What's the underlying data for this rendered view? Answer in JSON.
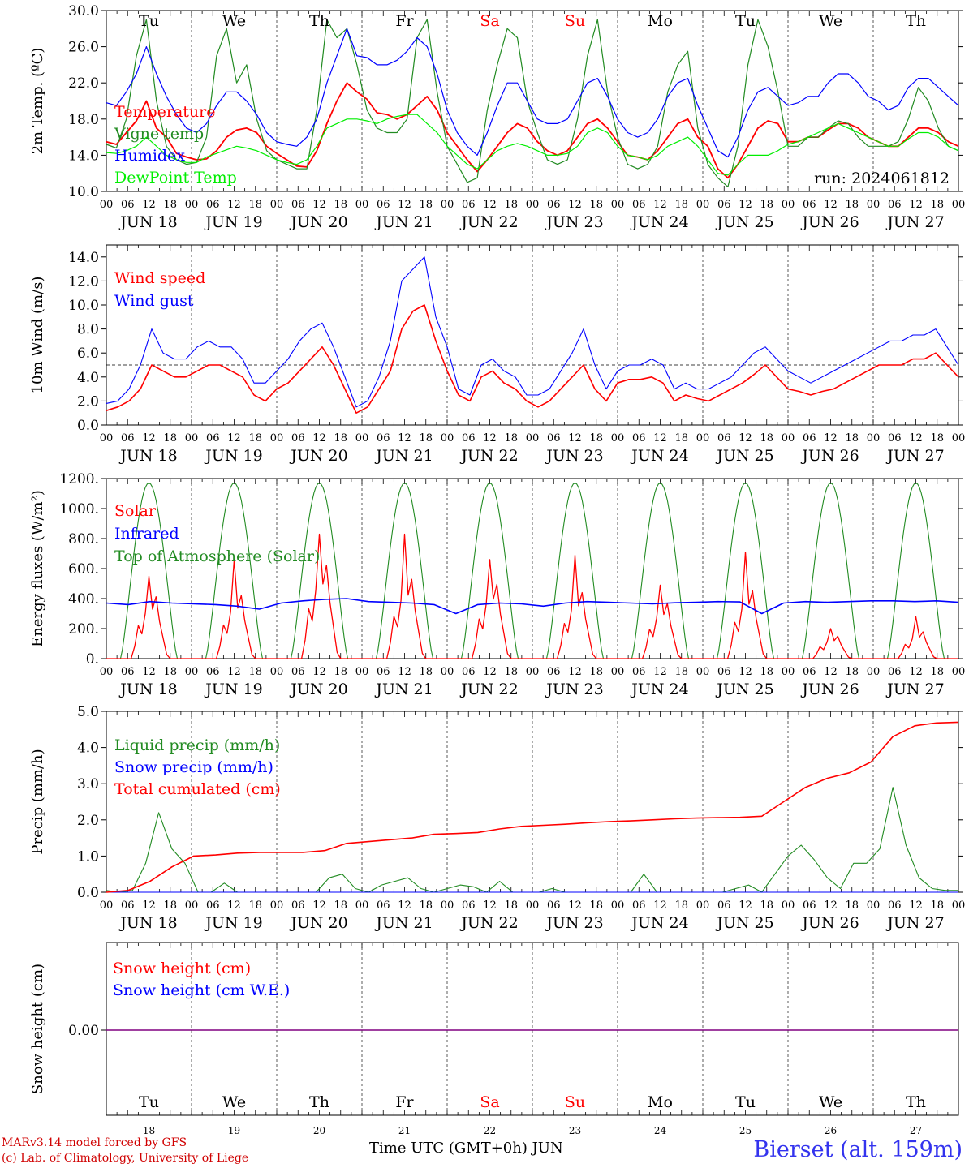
{
  "chart_data": [
    {
      "type": "line",
      "ylabel": "2m Temp. (ºC)",
      "ylim": [
        10,
        30
      ],
      "yticks": [
        "10.0",
        "14.0",
        "18.0",
        "22.0",
        "26.0",
        "30.0"
      ],
      "grid": "dashed vertical lines at day boundaries",
      "legend_position": "top-left",
      "annotation": "run: 2024061812",
      "x_unit": "hours from 2024-06-18 00 UTC, 3-hourly",
      "series": [
        {
          "name": "Temperature",
          "color": "#ff0000",
          "values": [
            15.5,
            15.2,
            16.5,
            17.8,
            20.0,
            17.0,
            16.0,
            14.2,
            13.8,
            13.5,
            13.6,
            14.5,
            16.0,
            16.8,
            17.0,
            16.5,
            15.0,
            14.2,
            13.5,
            12.8,
            12.7,
            14.5,
            17.5,
            20.0,
            22.0,
            21.0,
            20.2,
            18.7,
            18.5,
            18.0,
            18.5,
            19.5,
            20.5,
            19.0,
            16.5,
            15.0,
            13.5,
            12.2,
            13.5,
            15.0,
            16.5,
            17.5,
            17.0,
            15.5,
            14.5,
            14.0,
            14.5,
            16.0,
            17.5,
            18.0,
            17.0,
            15.5,
            14.0,
            13.8,
            13.5,
            14.5,
            16.0,
            17.5,
            18.0,
            16.0,
            15.0,
            12.5,
            11.5,
            13.0,
            15.0,
            17.0,
            17.8,
            17.5,
            15.5,
            15.5,
            16.0,
            16.0,
            16.8,
            17.5,
            17.5,
            17.0,
            16.0,
            15.5,
            15.0,
            15.0,
            16.0,
            17.0,
            17.0,
            16.5,
            15.5,
            15.0
          ]
        },
        {
          "name": "Vigne temp",
          "color": "#228b22",
          "values": [
            15.2,
            14.8,
            18.0,
            25.0,
            29.0,
            20.0,
            15.0,
            13.5,
            13.0,
            13.2,
            16.0,
            25.0,
            28.0,
            22.0,
            24.0,
            18.0,
            14.5,
            13.5,
            13.0,
            12.5,
            12.5,
            19.0,
            29.0,
            27.0,
            28.0,
            24.0,
            19.0,
            17.0,
            16.5,
            16.5,
            18.0,
            27.0,
            29.0,
            21.0,
            15.0,
            13.0,
            11.0,
            11.5,
            19.0,
            24.0,
            28.0,
            27.0,
            20.0,
            16.5,
            13.5,
            13.0,
            13.5,
            18.0,
            25.0,
            29.0,
            21.0,
            16.0,
            13.0,
            12.5,
            13.0,
            15.0,
            21.0,
            24.0,
            25.5,
            17.0,
            13.0,
            11.5,
            10.5,
            15.0,
            24.0,
            29.0,
            26.0,
            21.0,
            15.0,
            15.0,
            16.0,
            16.0,
            17.0,
            17.8,
            17.5,
            16.0,
            15.0,
            15.0,
            15.0,
            15.5,
            18.0,
            21.5,
            20.0,
            17.0,
            15.0,
            14.5
          ]
        },
        {
          "name": "Humidex",
          "color": "#0000ff",
          "values": [
            19.8,
            19.5,
            21.0,
            23.0,
            26.0,
            23.0,
            20.5,
            18.5,
            17.0,
            16.5,
            17.5,
            19.5,
            21.0,
            21.0,
            20.0,
            18.5,
            16.5,
            15.5,
            15.2,
            15.0,
            16.0,
            18.0,
            22.0,
            25.0,
            28.0,
            25.0,
            24.8,
            24.0,
            24.0,
            24.5,
            25.5,
            27.0,
            26.0,
            23.0,
            19.0,
            16.5,
            15.0,
            14.0,
            16.5,
            19.5,
            22.0,
            22.0,
            20.0,
            18.0,
            17.5,
            17.5,
            18.0,
            20.0,
            22.0,
            22.5,
            20.5,
            18.0,
            16.5,
            16.0,
            16.5,
            18.0,
            20.5,
            22.0,
            22.5,
            19.5,
            17.0,
            14.5,
            13.8,
            16.0,
            19.0,
            21.0,
            21.5,
            20.5,
            19.5,
            19.8,
            20.5,
            20.5,
            22.0,
            23.0,
            23.0,
            22.0,
            20.5,
            20.0,
            19.0,
            19.5,
            21.5,
            22.5,
            22.5,
            21.5,
            20.5,
            19.5
          ]
        },
        {
          "name": "DewPoint Temp",
          "color": "#00ee00",
          "values": [
            14.3,
            14.2,
            14.5,
            15.0,
            16.0,
            15.0,
            14.0,
            13.5,
            13.2,
            13.2,
            13.8,
            14.2,
            14.6,
            15.0,
            14.8,
            14.5,
            14.0,
            13.5,
            13.2,
            13.0,
            13.5,
            15.0,
            17.0,
            17.5,
            18.0,
            18.0,
            17.8,
            17.5,
            18.0,
            18.3,
            18.5,
            18.5,
            17.5,
            16.5,
            15.0,
            14.0,
            13.0,
            12.5,
            13.5,
            14.5,
            15.0,
            15.3,
            15.0,
            14.5,
            14.0,
            14.0,
            14.2,
            15.0,
            16.5,
            17.0,
            16.5,
            15.0,
            14.0,
            13.8,
            13.5,
            14.0,
            15.0,
            15.5,
            16.0,
            15.0,
            13.5,
            12.0,
            11.8,
            13.0,
            14.0,
            14.0,
            14.0,
            14.5,
            15.2,
            15.5,
            16.0,
            16.5,
            17.0,
            17.5,
            17.0,
            16.5,
            16.0,
            15.5,
            15.0,
            15.0,
            15.8,
            16.5,
            16.5,
            16.0,
            15.0,
            14.5
          ]
        }
      ]
    },
    {
      "type": "line",
      "ylabel": "10m Wind (m/s)",
      "ylim": [
        0,
        15
      ],
      "yticks": [
        "0.0",
        "2.0",
        "4.0",
        "6.0",
        "8.0",
        "10.0",
        "12.0",
        "14.0"
      ],
      "reference_line": 5.0,
      "legend_position": "top-left",
      "series": [
        {
          "name": "Wind speed",
          "color": "#ff0000",
          "values": [
            1.2,
            1.5,
            2.0,
            3.0,
            5.0,
            4.5,
            4.0,
            4.0,
            4.5,
            5.0,
            5.0,
            4.5,
            4.0,
            2.5,
            2.0,
            3.0,
            3.5,
            4.5,
            5.5,
            6.5,
            5.0,
            3.0,
            1.0,
            1.5,
            3.0,
            4.5,
            8.0,
            9.5,
            10.0,
            7.0,
            4.5,
            2.5,
            2.0,
            4.0,
            4.5,
            3.5,
            3.0,
            2.0,
            1.5,
            2.0,
            3.0,
            4.0,
            5.0,
            3.0,
            2.0,
            3.5,
            3.8,
            3.8,
            4.0,
            3.5,
            2.0,
            2.5,
            2.2,
            2.0,
            2.5,
            3.0,
            3.5,
            4.2,
            5.0,
            4.0,
            3.0,
            2.8,
            2.5,
            2.8,
            3.0,
            3.5,
            4.0,
            4.5,
            5.0,
            5.0,
            5.0,
            5.5,
            5.5,
            6.0,
            5.0,
            4.0
          ]
        },
        {
          "name": "Wind gust",
          "color": "#0000ff",
          "values": [
            1.8,
            2.0,
            3.0,
            5.0,
            8.0,
            6.0,
            5.5,
            5.5,
            6.5,
            7.0,
            6.5,
            6.5,
            5.5,
            3.5,
            3.5,
            4.5,
            5.5,
            7.0,
            8.0,
            8.5,
            6.5,
            4.0,
            1.5,
            2.0,
            4.0,
            7.0,
            12.0,
            13.0,
            14.0,
            9.0,
            6.5,
            3.0,
            2.5,
            5.0,
            5.5,
            4.5,
            4.0,
            2.5,
            2.5,
            3.0,
            4.5,
            6.0,
            8.0,
            5.0,
            3.0,
            4.5,
            5.0,
            5.0,
            5.5,
            5.0,
            3.0,
            3.5,
            3.0,
            3.0,
            3.5,
            4.0,
            5.0,
            6.0,
            6.5,
            5.5,
            4.5,
            4.0,
            3.5,
            4.0,
            4.5,
            5.0,
            5.5,
            6.0,
            6.5,
            7.0,
            7.0,
            7.5,
            7.5,
            8.0,
            6.5,
            5.0
          ]
        }
      ]
    },
    {
      "type": "line",
      "ylabel": "Energy fluxes (W/m²)",
      "ylim": [
        0,
        1200
      ],
      "yticks": [
        "0.",
        "200.",
        "400.",
        "600.",
        "800.",
        "1000.",
        "1200."
      ],
      "legend_position": "top-left",
      "series": [
        {
          "name": "Solar",
          "color": "#ff0000",
          "peaks": [
            550,
            660,
            830,
            830,
            660,
            690,
            490,
            710,
            200,
            280
          ]
        },
        {
          "name": "Infrared",
          "color": "#0000ff",
          "values": [
            370,
            360,
            380,
            370,
            365,
            360,
            350,
            330,
            370,
            385,
            395,
            400,
            380,
            375,
            370,
            360,
            300,
            360,
            370,
            365,
            350,
            370,
            380,
            375,
            370,
            365,
            372,
            375,
            380,
            378,
            300,
            370,
            380,
            375,
            380,
            385,
            385,
            380,
            385,
            375
          ]
        },
        {
          "name": "Top of Atmosphere (Solar)",
          "color": "#228b22",
          "peak": 1170
        }
      ]
    },
    {
      "type": "line",
      "ylabel": "Precip (mm/h)",
      "ylim": [
        0,
        5
      ],
      "yticks": [
        "0.0",
        "1.0",
        "2.0",
        "3.0",
        "4.0",
        "5.0"
      ],
      "legend_position": "top-left",
      "series": [
        {
          "name": "Liquid precip (mm/h)",
          "color": "#228b22",
          "values": [
            0.05,
            0.0,
            0.05,
            0.8,
            2.2,
            1.2,
            0.8,
            0.0,
            0.0,
            0.25,
            0.0,
            0.0,
            0.0,
            0.0,
            0.0,
            0.0,
            0.0,
            0.4,
            0.5,
            0.1,
            0.0,
            0.2,
            0.3,
            0.4,
            0.1,
            0.0,
            0.1,
            0.2,
            0.15,
            0.0,
            0.3,
            0.0,
            0.0,
            0.0,
            0.1,
            0.0,
            0.0,
            0.0,
            0.0,
            0.0,
            0.0,
            0.5,
            0.0,
            0.0,
            0.0,
            0.0,
            0.0,
            0.0,
            0.1,
            0.2,
            0.0,
            0.5,
            1.0,
            1.3,
            0.9,
            0.4,
            0.1,
            0.8,
            0.8,
            1.2,
            2.9,
            1.3,
            0.4,
            0.1,
            0.05,
            0.05
          ]
        },
        {
          "name": "Snow precip (mm/h)",
          "color": "#0000ff",
          "values": [
            0.0,
            0.0
          ]
        },
        {
          "name": "Total cumulated (cm)",
          "color": "#ff0000",
          "values": [
            0.0,
            0.05,
            0.3,
            0.7,
            1.0,
            1.03,
            1.08,
            1.1,
            1.1,
            1.1,
            1.15,
            1.35,
            1.4,
            1.45,
            1.5,
            1.6,
            1.62,
            1.65,
            1.75,
            1.82,
            1.85,
            1.88,
            1.92,
            1.95,
            1.97,
            2.0,
            2.03,
            2.05,
            2.06,
            2.07,
            2.1,
            2.5,
            2.9,
            3.15,
            3.3,
            3.6,
            4.3,
            4.6,
            4.68,
            4.7
          ]
        }
      ]
    },
    {
      "type": "line",
      "ylabel": "Snow height (cm)",
      "yticks": [
        "0.00"
      ],
      "legend_position": "top-left",
      "series": [
        {
          "name": "Snow height (cm)",
          "color": "#ff0000",
          "values": [
            0.0,
            0.0
          ]
        },
        {
          "name": "Snow height (cm W.E.)",
          "color": "#0000ff",
          "values": [
            0.0,
            0.0
          ]
        }
      ]
    }
  ],
  "day_labels": [
    {
      "day": "Tu",
      "weekend": false
    },
    {
      "day": "We",
      "weekend": false
    },
    {
      "day": "Th",
      "weekend": false
    },
    {
      "day": "Fr",
      "weekend": false
    },
    {
      "day": "Sa",
      "weekend": true
    },
    {
      "day": "Su",
      "weekend": true
    },
    {
      "day": "Mo",
      "weekend": false
    },
    {
      "day": "Tu",
      "weekend": false
    },
    {
      "day": "We",
      "weekend": false
    },
    {
      "day": "Th",
      "weekend": false
    }
  ],
  "date_labels": [
    "JUN 18",
    "JUN 19",
    "JUN 20",
    "JUN 21",
    "JUN 22",
    "JUN 23",
    "JUN 24",
    "JUN 25",
    "JUN 26",
    "JUN 27"
  ],
  "day_numbers": [
    "18",
    "19",
    "20",
    "21",
    "22",
    "23",
    "24",
    "25",
    "26",
    "27"
  ],
  "hour_ticks": [
    "00",
    "06",
    "12",
    "18"
  ],
  "last_hour_tick": "00",
  "footer": {
    "credit_line1": "MARv3.14 model forced by GFS",
    "credit_line2": "(c) Lab. of Climatology, University of Liege",
    "x_axis_title": "Time UTC (GMT+0h) JUN",
    "station": "Bierset (alt. 159m)"
  },
  "colors": {
    "weekend": "#ff0000",
    "axis": "#000000"
  }
}
